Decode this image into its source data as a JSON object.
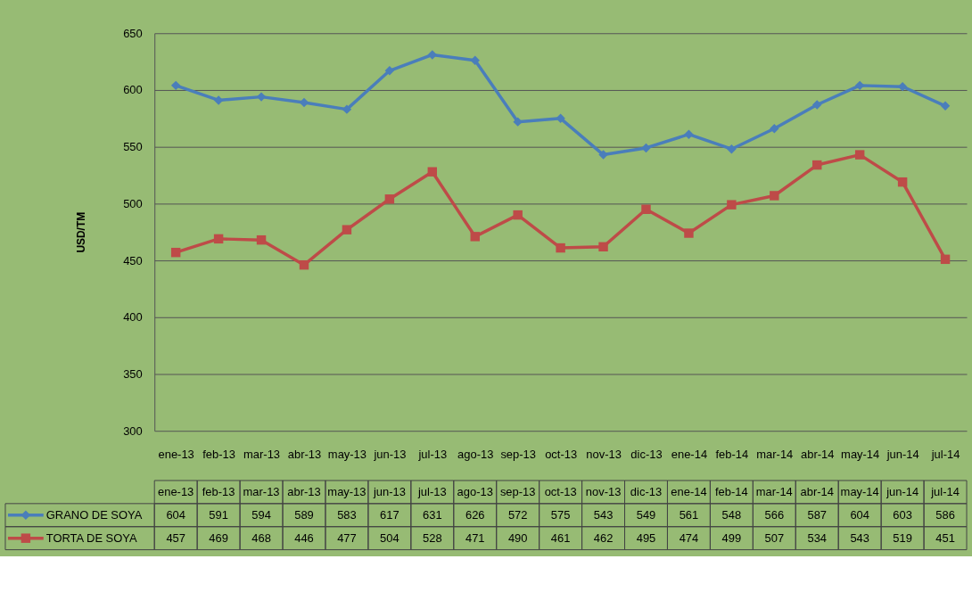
{
  "chart_data": {
    "type": "line",
    "ylabel": "USD/TM",
    "categories": [
      "ene-13",
      "feb-13",
      "mar-13",
      "abr-13",
      "may-13",
      "jun-13",
      "jul-13",
      "ago-13",
      "sep-13",
      "oct-13",
      "nov-13",
      "dic-13",
      "ene-14",
      "feb-14",
      "mar-14",
      "abr-14",
      "may-14",
      "jun-14",
      "jul-14"
    ],
    "series": [
      {
        "name": "GRANO DE SOYA",
        "color": "#4a7ebb",
        "marker": "diamond",
        "values": [
          604,
          591,
          594,
          589,
          583,
          617,
          631,
          626,
          572,
          575,
          543,
          549,
          561,
          548,
          566,
          587,
          604,
          603,
          586
        ]
      },
      {
        "name": "TORTA DE SOYA",
        "color": "#be4b48",
        "marker": "square",
        "values": [
          457,
          469,
          468,
          446,
          477,
          504,
          528,
          471,
          490,
          461,
          462,
          495,
          474,
          499,
          507,
          534,
          543,
          519,
          451
        ]
      }
    ],
    "ylim": [
      300,
      650
    ],
    "yticks": [
      300,
      350,
      400,
      450,
      500,
      550,
      600,
      650
    ],
    "grid": "y",
    "legend": "bottom",
    "data_labels": true
  }
}
